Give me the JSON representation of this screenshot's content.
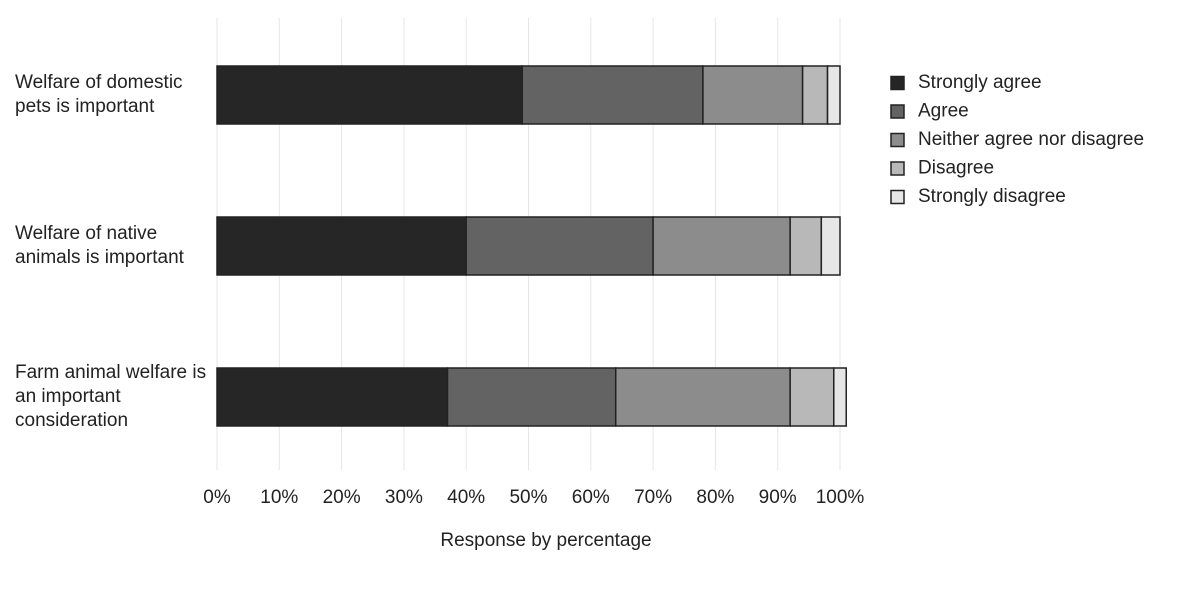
{
  "chart_data": {
    "type": "stacked_barh",
    "categories": [
      "Welfare of domestic pets is important",
      "Welfare of native animals is important",
      "Farm animal welfare is an important consideration"
    ],
    "series": [
      {
        "name": "Strongly agree",
        "color": "#262626",
        "values": [
          49,
          40,
          37
        ]
      },
      {
        "name": "Agree",
        "color": "#636363",
        "values": [
          29,
          30,
          27
        ]
      },
      {
        "name": "Neither agree nor disagree",
        "color": "#8c8c8c",
        "values": [
          16,
          22,
          28
        ]
      },
      {
        "name": "Disagree",
        "color": "#b8b8b8",
        "values": [
          4,
          5,
          7
        ]
      },
      {
        "name": "Strongly disagree",
        "color": "#e6e6e6",
        "values": [
          2,
          3,
          2
        ]
      }
    ],
    "xlabel": "Response by percentage",
    "xlim": [
      0,
      100
    ],
    "xticks": [
      {
        "value": 0,
        "label": "0%"
      },
      {
        "value": 10,
        "label": "10%"
      },
      {
        "value": 20,
        "label": "20%"
      },
      {
        "value": 30,
        "label": "30%"
      },
      {
        "value": 40,
        "label": "40%"
      },
      {
        "value": 50,
        "label": "50%"
      },
      {
        "value": 60,
        "label": "60%"
      },
      {
        "value": 70,
        "label": "70%"
      },
      {
        "value": 80,
        "label": "80%"
      },
      {
        "value": 90,
        "label": "90%"
      },
      {
        "value": 100,
        "label": "100%"
      }
    ],
    "grid": true,
    "legend": "right"
  }
}
